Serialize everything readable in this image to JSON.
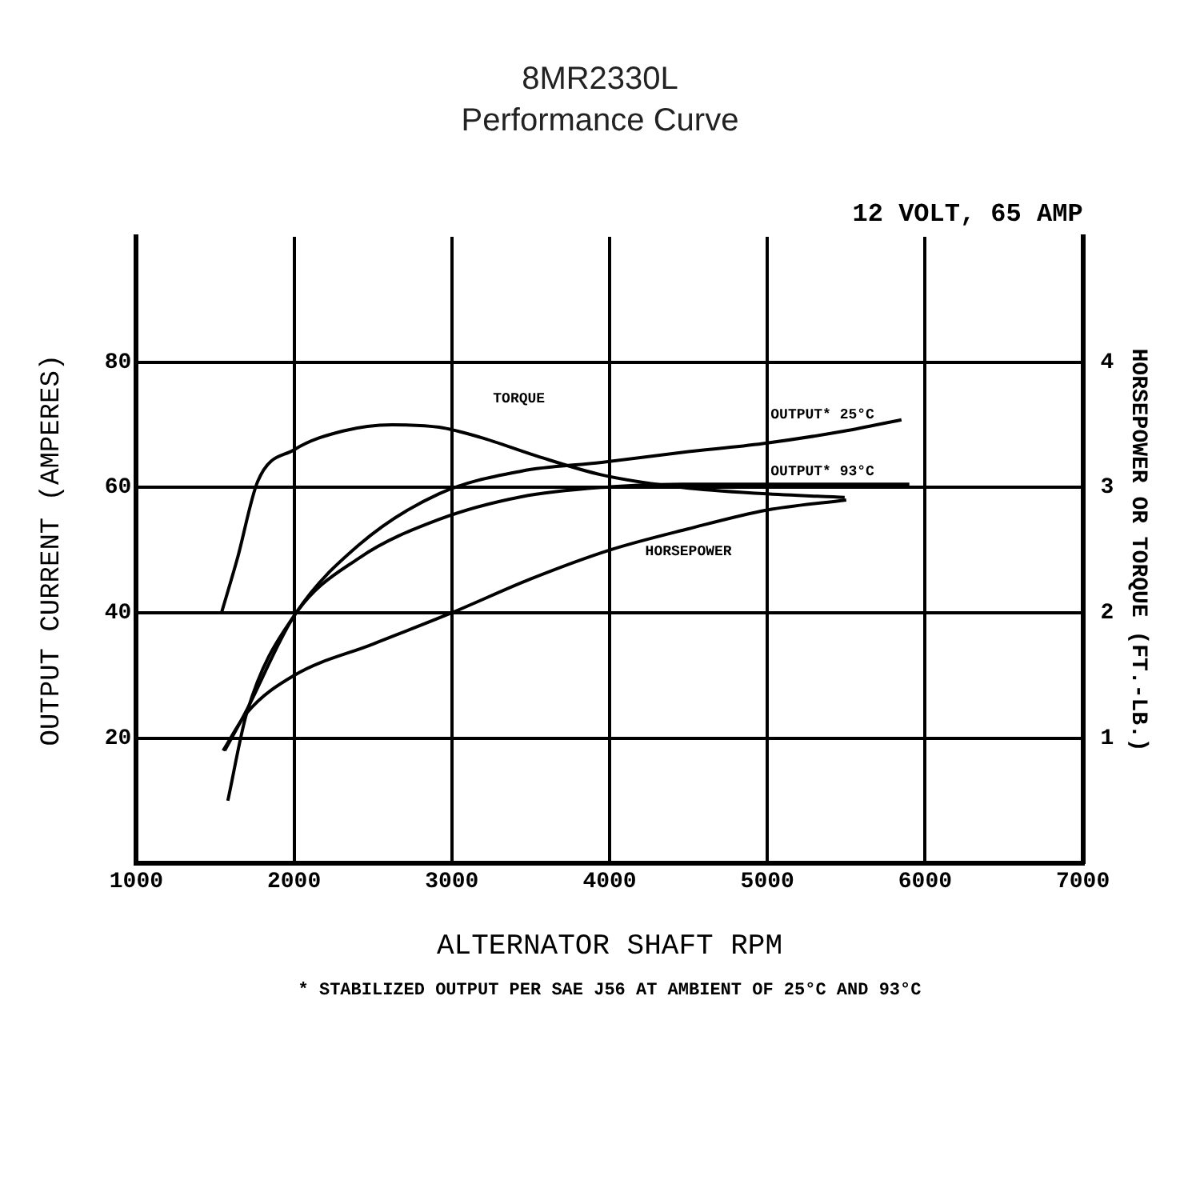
{
  "chart_data": {
    "type": "line",
    "title": "8MR2330L",
    "subtitle": "Performance Curve",
    "xlabel": "ALTERNATOR SHAFT RPM",
    "ylabel": "OUTPUT CURRENT (AMPERES)",
    "y2label": "HORSEPOWER OR TORQUE (FT.-LB.)",
    "annotations": [
      "12 VOLT, 65 AMP",
      "* STABILIZED OUTPUT PER SAE J56 AT AMBIENT OF 25°C AND 93°C"
    ],
    "xlim": [
      1000,
      7000
    ],
    "xticks": [
      1000,
      2000,
      3000,
      4000,
      5000,
      6000,
      7000
    ],
    "ylim": [
      0,
      100
    ],
    "yticks": [
      20,
      40,
      60,
      80
    ],
    "y2lim": [
      0,
      5
    ],
    "y2ticks": [
      1,
      2,
      3,
      4
    ],
    "grid": true,
    "legend": false,
    "marker": "none",
    "line_style": "solid",
    "series": [
      {
        "name": "TORQUE",
        "color": "#000000",
        "axis": "y2",
        "x": [
          1540,
          1640,
          1770,
          2000,
          2310,
          2620,
          2920,
          3180,
          3540,
          3950,
          4460,
          4970,
          5490
        ],
        "values": [
          2.0,
          2.43,
          3.05,
          3.3,
          3.45,
          3.5,
          3.48,
          3.4,
          3.25,
          3.1,
          3.0,
          2.95,
          2.92
        ]
      },
      {
        "name": "OUTPUT* 25°C",
        "color": "#000000",
        "x": [
          1560,
          1690,
          2000,
          2410,
          2920,
          3440,
          3950,
          4460,
          4970,
          5490,
          5850
        ],
        "values": [
          18,
          24,
          39.5,
          50.8,
          59,
          62.6,
          64,
          65.6,
          67,
          69,
          70.8
        ]
      },
      {
        "name": "OUTPUT* 93°C",
        "color": "#000000",
        "x": [
          1580,
          1700,
          2000,
          2410,
          2920,
          3440,
          3950,
          4460,
          4970,
          5490,
          5900
        ],
        "values": [
          10,
          24,
          39.5,
          48.7,
          54.9,
          58.5,
          60,
          60.5,
          60.5,
          60.5,
          60.5
        ]
      },
      {
        "name": "HORSEPOWER",
        "color": "#000000",
        "axis": "y2",
        "x": [
          1550,
          1700,
          2000,
          2500,
          3000,
          3500,
          4000,
          4500,
          5000,
          5500
        ],
        "values": [
          0.9,
          1.2,
          1.5,
          1.75,
          2.0,
          2.27,
          2.5,
          2.67,
          2.82,
          2.9
        ]
      }
    ]
  }
}
